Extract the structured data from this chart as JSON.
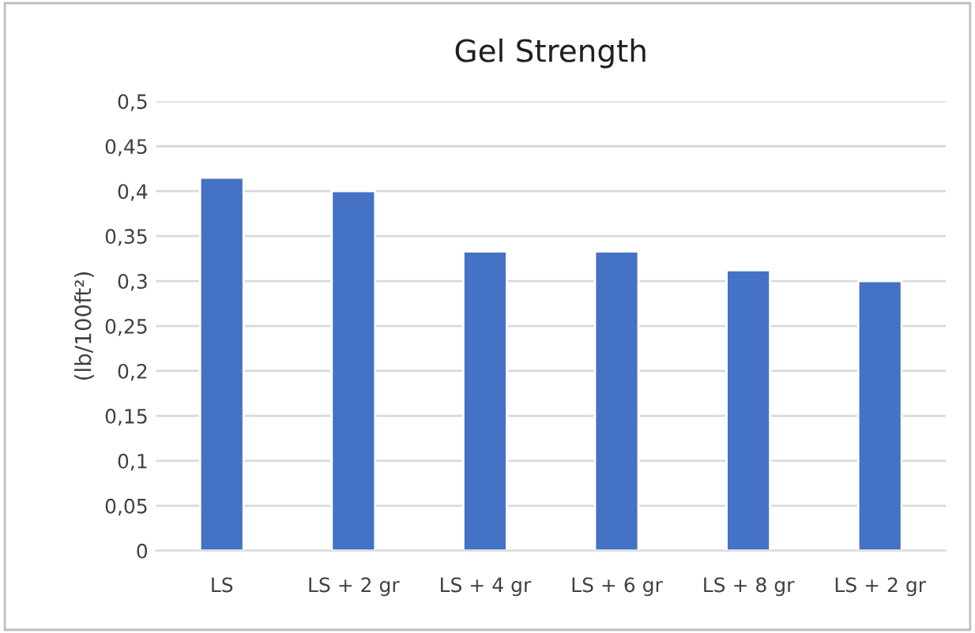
{
  "chart_data": {
    "type": "bar",
    "title": "Gel Strength",
    "ylabel": "(lb/100ft²)",
    "categories": [
      "LS",
      "LS + 2 gr",
      "LS + 4 gr",
      "LS + 6 gr",
      "LS + 8 gr",
      "LS + 2 gr"
    ],
    "values": [
      0.415,
      0.4,
      0.333,
      0.333,
      0.312,
      0.3
    ],
    "color": "#4472c4",
    "ylim": [
      0,
      0.5
    ],
    "yticks": [
      0,
      {
        "value": 0.05,
        "label": "0,05"
      },
      {
        "value": 0.1,
        "label": "0,1"
      },
      {
        "value": 0.15,
        "label": "0,15"
      },
      {
        "value": 0.2,
        "label": "0,2"
      },
      {
        "value": 0.25,
        "label": "0,25"
      },
      {
        "value": 0.3,
        "label": "0,3"
      },
      {
        "value": 0.35,
        "label": "0,35"
      },
      {
        "value": 0.4,
        "label": "0,4"
      },
      {
        "value": 0.45,
        "label": "0,45"
      },
      {
        "value": 0.5,
        "label": "0,5"
      }
    ],
    "grid": "y",
    "legend": false
  }
}
